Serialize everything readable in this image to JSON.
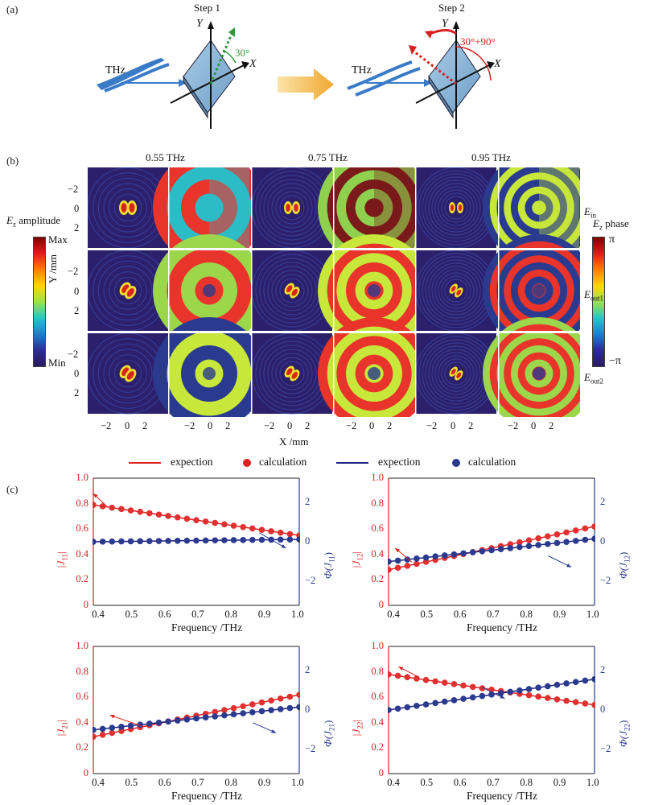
{
  "panel_labels": {
    "a": "(a)",
    "b": "(b)",
    "c": "(c)"
  },
  "panel_a": {
    "step1": "Step 1",
    "step2": "Step 2",
    "source": "THz",
    "axis_y": "Y",
    "axis_x": "X",
    "angle1": "30°",
    "angle2": "30°+90°",
    "colors": {
      "plate": "#8ab6d6",
      "beam": "#3a7bc8",
      "green": "#2e9a3a",
      "red": "#d62020",
      "arrow": "#f0b030"
    }
  },
  "panel_b": {
    "frequencies": [
      "0.55 THz",
      "0.75 THz",
      "0.95 THz"
    ],
    "row_labels": [
      {
        "main": "E",
        "sub": "in"
      },
      {
        "main": "E",
        "sub": "out1"
      },
      {
        "main": "E",
        "sub": "out2"
      }
    ],
    "y_axis_label": "Y /mm",
    "x_axis_label": "X /mm",
    "y_ticks": [
      "−2",
      "0",
      "2"
    ],
    "x_ticks": [
      "−2",
      "0",
      "2"
    ],
    "amp_colorbar": {
      "title_main": "E",
      "title_sub": "z",
      "title_rest": " amplitude",
      "max": "Max",
      "min": "Min"
    },
    "phase_colorbar": {
      "title_main": "E",
      "title_sub": "z",
      "title_rest": " phase",
      "max": "π",
      "min": "−π"
    }
  },
  "legend": {
    "items": [
      {
        "label": "expection",
        "kind": "line",
        "color": "#e02020"
      },
      {
        "label": "calculation",
        "kind": "dot",
        "color": "#e02020"
      },
      {
        "label": "expection",
        "kind": "line",
        "color": "#1a237e"
      },
      {
        "label": "calculation",
        "kind": "dot",
        "color": "#2a3a8f"
      }
    ]
  },
  "chart_data": [
    {
      "type": "line",
      "xlabel": "Frequency /THz",
      "left_label": {
        "main": "|J",
        "sub": "11",
        "end": "|"
      },
      "right_label": {
        "main": "Φ(J",
        "sub": "11",
        "end": ")"
      },
      "xlim": [
        0.38,
        1.0
      ],
      "ylim_left": [
        0,
        1.0
      ],
      "ylim_right": [
        -3.2,
        3.2
      ],
      "x_ticks": [
        "0.4",
        "0.5",
        "0.6",
        "0.7",
        "0.8",
        "0.9",
        "1.0"
      ],
      "left_ticks": [
        "0",
        "0.2",
        "0.4",
        "0.6",
        "0.8",
        "1.0"
      ],
      "right_ticks": [
        "−2",
        "0",
        "2"
      ],
      "amplitude": {
        "start": 0.79,
        "end": 0.55
      },
      "phase": {
        "start": 0.0,
        "end": 0.12
      },
      "arrows": [
        {
          "from": [
            0.42,
            0.78
          ],
          "to": [
            0.38,
            0.88
          ]
        },
        {
          "from": [
            0.88,
            0.57
          ],
          "to": [
            0.96,
            0.45
          ]
        }
      ]
    },
    {
      "type": "line",
      "xlabel": "Frequency /THz",
      "left_label": {
        "main": "|J",
        "sub": "12",
        "end": "|"
      },
      "right_label": {
        "main": "Φ(J",
        "sub": "12",
        "end": ")"
      },
      "xlim": [
        0.38,
        1.0
      ],
      "ylim_left": [
        0,
        1.0
      ],
      "ylim_right": [
        -3.2,
        3.2
      ],
      "x_ticks": [
        "0.4",
        "0.5",
        "0.6",
        "0.7",
        "0.8",
        "0.9",
        "1.0"
      ],
      "left_ticks": [
        "0",
        "0.2",
        "0.4",
        "0.6",
        "0.8",
        "1.0"
      ],
      "right_ticks": [
        "−2",
        "0",
        "2"
      ],
      "amplitude": {
        "start": 0.28,
        "end": 0.62
      },
      "phase": {
        "start": -1.0,
        "end": 0.15
      },
      "arrows": [
        {
          "from": [
            0.45,
            0.34
          ],
          "to": [
            0.4,
            0.45
          ]
        },
        {
          "from": [
            0.86,
            0.39
          ],
          "to": [
            0.93,
            0.3
          ]
        }
      ]
    },
    {
      "type": "line",
      "xlabel": "Frequency /THz",
      "left_label": {
        "main": "|J",
        "sub": "21",
        "end": "|"
      },
      "right_label": {
        "main": "Φ(J",
        "sub": "21",
        "end": ")"
      },
      "xlim": [
        0.38,
        1.0
      ],
      "ylim_left": [
        0,
        1.0
      ],
      "ylim_right": [
        -3.2,
        3.2
      ],
      "x_ticks": [
        "0.4",
        "0.5",
        "0.6",
        "0.7",
        "0.8",
        "0.9",
        "1.0"
      ],
      "left_ticks": [
        "0",
        "0.2",
        "0.4",
        "0.6",
        "0.8",
        "1.0"
      ],
      "right_ticks": [
        "−2",
        "0",
        "2"
      ],
      "amplitude": {
        "start": 0.29,
        "end": 0.62
      },
      "phase": {
        "start": -1.0,
        "end": 0.15
      },
      "arrows": [
        {
          "from": [
            0.53,
            0.37
          ],
          "to": [
            0.43,
            0.46
          ]
        },
        {
          "from": [
            0.86,
            0.4
          ],
          "to": [
            0.93,
            0.32
          ]
        }
      ]
    },
    {
      "type": "line",
      "xlabel": "Frequency /THz",
      "left_label": {
        "main": "|J",
        "sub": "22",
        "end": "|"
      },
      "right_label": {
        "main": "Φ(J",
        "sub": "22",
        "end": ")"
      },
      "xlim": [
        0.38,
        1.0
      ],
      "ylim_left": [
        0,
        1.0
      ],
      "ylim_right": [
        -3.2,
        3.2
      ],
      "x_ticks": [
        "0.4",
        "0.5",
        "0.6",
        "0.7",
        "0.8",
        "0.9",
        "1.0"
      ],
      "left_ticks": [
        "0",
        "0.2",
        "0.4",
        "0.6",
        "0.8",
        "1.0"
      ],
      "right_ticks": [
        "−2",
        "0",
        "2"
      ],
      "amplitude": {
        "start": 0.78,
        "end": 0.54
      },
      "phase": {
        "start": 0.0,
        "end": 1.55
      },
      "arrows": [
        {
          "from": [
            0.47,
            0.76
          ],
          "to": [
            0.41,
            0.84
          ]
        },
        {
          "from": [
            0.66,
            0.68
          ],
          "to": [
            0.73,
            0.59
          ]
        }
      ]
    }
  ]
}
